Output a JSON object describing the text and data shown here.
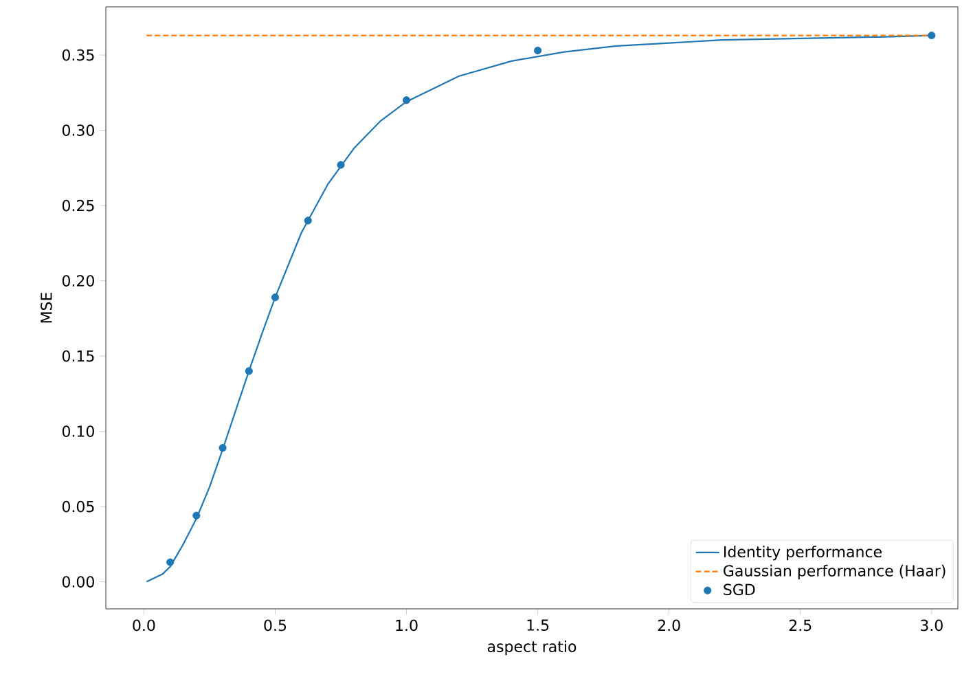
{
  "chart_data": {
    "type": "line",
    "xlabel": "aspect ratio",
    "ylabel": "MSE",
    "xlim": [
      -0.145,
      3.1
    ],
    "ylim": [
      -0.018,
      0.382
    ],
    "xticks": [
      {
        "value": 0,
        "label": "0.0"
      },
      {
        "value": 0.5,
        "label": "0.5"
      },
      {
        "value": 1,
        "label": "1.0"
      },
      {
        "value": 1.5,
        "label": "1.5"
      },
      {
        "value": 2,
        "label": "2.0"
      },
      {
        "value": 2.5,
        "label": "2.5"
      },
      {
        "value": 3,
        "label": "3.0"
      }
    ],
    "yticks": [
      {
        "value": 0,
        "label": "0.00"
      },
      {
        "value": 0.05,
        "label": "0.05"
      },
      {
        "value": 0.1,
        "label": "0.10"
      },
      {
        "value": 0.15,
        "label": "0.15"
      },
      {
        "value": 0.2,
        "label": "0.20"
      },
      {
        "value": 0.25,
        "label": "0.25"
      },
      {
        "value": 0.3,
        "label": "0.30"
      },
      {
        "value": 0.35,
        "label": "0.35"
      }
    ],
    "legend": "bottom right",
    "grid": false,
    "series": [
      {
        "name": "Identity performance",
        "line_style": "solid",
        "color": "#1f77b4",
        "x": [
          0.01,
          0.07,
          0.1,
          0.15,
          0.2,
          0.25,
          0.3,
          0.35,
          0.4,
          0.45,
          0.5,
          0.6,
          0.7,
          0.8,
          0.9,
          1.0,
          1.2,
          1.4,
          1.6,
          1.8,
          2.0,
          2.2,
          2.5,
          2.8,
          3.0
        ],
        "values": [
          0.0,
          0.005,
          0.01,
          0.025,
          0.042,
          0.063,
          0.088,
          0.114,
          0.14,
          0.165,
          0.189,
          0.232,
          0.264,
          0.288,
          0.306,
          0.319,
          0.336,
          0.346,
          0.352,
          0.356,
          0.358,
          0.36,
          0.361,
          0.362,
          0.363
        ]
      },
      {
        "name": "Gaussian performance (Haar)",
        "line_style": "dashed",
        "color": "#ff7f0e",
        "x": [
          0.01,
          3.0
        ],
        "values": [
          0.363,
          0.363
        ]
      },
      {
        "name": "SGD",
        "type": "scatter",
        "marker": "circle",
        "color": "#1f77b4",
        "x": [
          0.1,
          0.2,
          0.3,
          0.4,
          0.5,
          0.625,
          0.75,
          1.0,
          1.5,
          3.0
        ],
        "values": [
          0.013,
          0.044,
          0.089,
          0.14,
          0.189,
          0.24,
          0.277,
          0.32,
          0.353,
          0.363
        ]
      }
    ]
  }
}
